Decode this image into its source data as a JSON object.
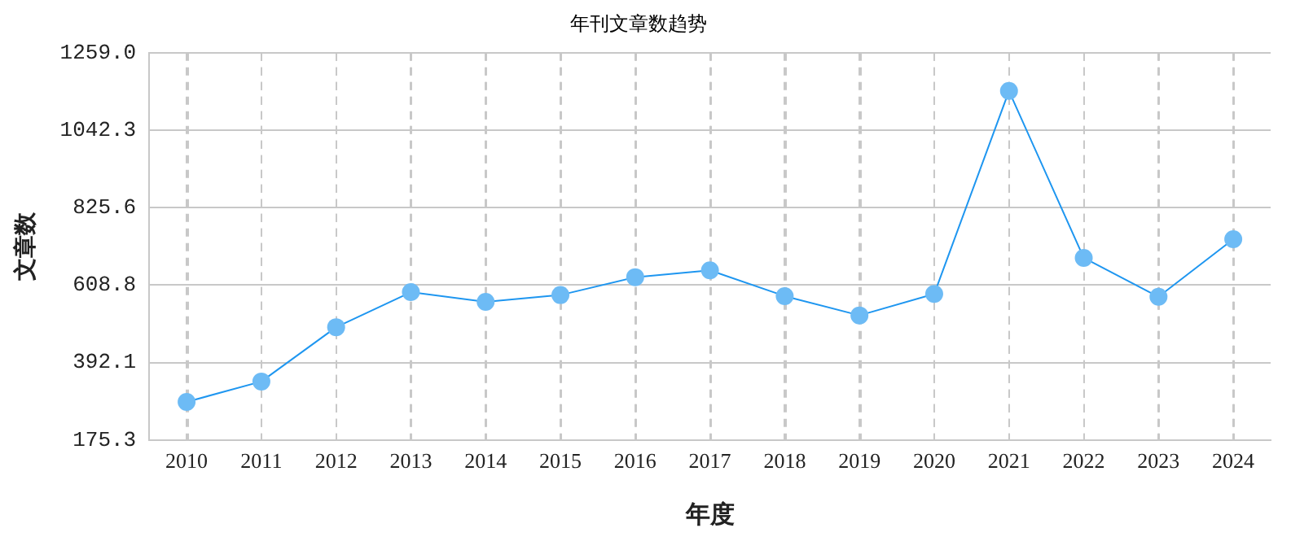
{
  "chart_data": {
    "type": "line",
    "title": "年刊文章数趋势",
    "xlabel": "年度",
    "ylabel": "文章数",
    "categories": [
      "2010",
      "2011",
      "2012",
      "2013",
      "2014",
      "2015",
      "2016",
      "2017",
      "2018",
      "2019",
      "2020",
      "2021",
      "2022",
      "2023",
      "2024"
    ],
    "series": [
      {
        "color": "#1e96f0",
        "values": [
          282,
          339,
          491,
          589,
          562,
          581,
          631,
          650,
          578,
          524,
          584,
          1152,
          685,
          576,
          737
        ]
      }
    ],
    "ylim": [
      175.3,
      1259.0
    ],
    "yticks": [
      {
        "value": 175.3,
        "label": "175.3"
      },
      {
        "value": 392.1,
        "label": "392.1"
      },
      {
        "value": 608.8,
        "label": "608.8"
      },
      {
        "value": 825.6,
        "label": "825.6"
      },
      {
        "value": 1042.3,
        "label": "1042.3"
      },
      {
        "value": 1259.0,
        "label": "1259.0"
      }
    ],
    "grid": true,
    "legend": false,
    "marker": "circle",
    "line_style": "solid"
  }
}
